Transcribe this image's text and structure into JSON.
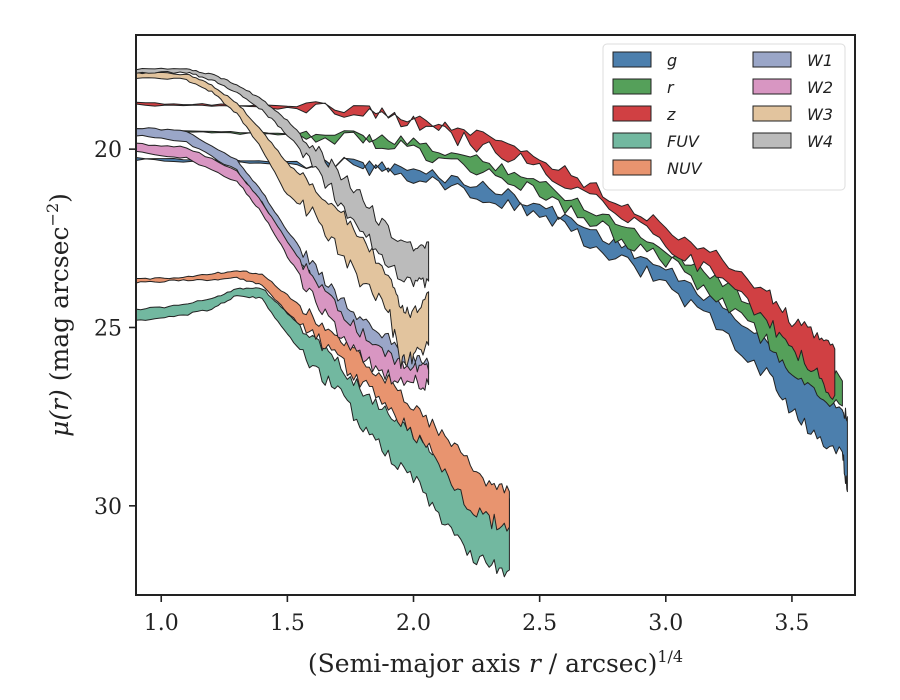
{
  "chart_data": {
    "type": "area",
    "xlabel": "(Semi-major axis r / arcsec)",
    "xlabel_italic_var": "r",
    "xlabel_power": "1/4",
    "ylabel": "μ(r) (mag arcsec",
    "ylabel_power": "−2",
    "ylabel_suffix": ")",
    "xlim": [
      0.9,
      3.75
    ],
    "ylim": [
      32.5,
      16.8
    ],
    "y_inverted": true,
    "xticks": [
      1.0,
      1.5,
      2.0,
      2.5,
      3.0,
      3.5
    ],
    "xtick_labels": [
      "1.0",
      "1.5",
      "2.0",
      "2.5",
      "3.0",
      "3.5"
    ],
    "yticks": [
      20,
      25,
      30
    ],
    "ytick_labels": [
      "20",
      "25",
      "30"
    ],
    "legend_position": "top-right",
    "legend_columns": 2,
    "series": [
      {
        "name": "g",
        "color": "#4c7fad",
        "x": [
          0.9,
          1.2,
          1.5,
          1.8,
          2.0,
          2.2,
          2.4,
          2.6,
          2.8,
          3.0,
          3.2,
          3.4,
          3.5,
          3.6,
          3.7,
          3.72
        ],
        "bright": [
          20.25,
          20.3,
          20.35,
          20.4,
          20.6,
          20.9,
          21.3,
          21.9,
          22.6,
          23.4,
          24.3,
          25.4,
          26.0,
          26.5,
          27.3,
          27.5
        ],
        "faint": [
          20.3,
          20.35,
          20.4,
          20.5,
          20.75,
          21.1,
          21.6,
          22.2,
          23.0,
          23.8,
          24.9,
          26.3,
          27.4,
          28.0,
          28.5,
          29.6
        ]
      },
      {
        "name": "r",
        "color": "#55a05a",
        "x": [
          0.9,
          1.2,
          1.5,
          1.8,
          2.0,
          2.2,
          2.4,
          2.6,
          2.8,
          3.0,
          3.2,
          3.4,
          3.5,
          3.6,
          3.7
        ],
        "bright": [
          19.45,
          19.5,
          19.55,
          19.65,
          19.85,
          20.2,
          20.6,
          21.3,
          22.0,
          22.8,
          23.6,
          24.6,
          25.2,
          26.0,
          26.5
        ],
        "faint": [
          19.5,
          19.55,
          19.6,
          19.75,
          20.0,
          20.45,
          20.9,
          21.6,
          22.4,
          23.1,
          24.1,
          25.4,
          26.2,
          27.0,
          27.2
        ]
      },
      {
        "name": "z",
        "color": "#d04043",
        "x": [
          0.9,
          1.2,
          1.5,
          1.8,
          2.0,
          2.2,
          2.4,
          2.6,
          2.8,
          3.0,
          3.2,
          3.4,
          3.5,
          3.6,
          3.67
        ],
        "bright": [
          18.7,
          18.75,
          18.8,
          18.9,
          19.15,
          19.5,
          19.95,
          20.6,
          21.4,
          22.2,
          23.0,
          24.0,
          24.8,
          25.2,
          25.6
        ],
        "faint": [
          18.75,
          18.8,
          18.85,
          19.0,
          19.3,
          19.75,
          20.25,
          20.9,
          21.7,
          22.6,
          23.6,
          24.8,
          25.6,
          26.3,
          26.9
        ]
      },
      {
        "name": "FUV",
        "color": "#72b8a0",
        "x": [
          0.9,
          1.05,
          1.2,
          1.3,
          1.4,
          1.5,
          1.6,
          1.7,
          1.8,
          1.9,
          2.0,
          2.1,
          2.2,
          2.3,
          2.38
        ],
        "bright": [
          24.5,
          24.4,
          24.2,
          23.9,
          23.9,
          24.6,
          25.3,
          26.0,
          26.8,
          27.4,
          28.0,
          28.6,
          29.3,
          29.6,
          29.8
        ],
        "faint": [
          24.8,
          24.7,
          24.5,
          24.1,
          24.2,
          25.2,
          26.1,
          26.8,
          27.8,
          28.6,
          29.2,
          30.2,
          31.3,
          31.7,
          31.8
        ]
      },
      {
        "name": "NUV",
        "color": "#e8946f",
        "x": [
          0.9,
          1.05,
          1.2,
          1.3,
          1.4,
          1.5,
          1.6,
          1.7,
          1.8,
          1.9,
          2.0,
          2.1,
          2.2,
          2.3,
          2.38
        ],
        "bright": [
          23.65,
          23.6,
          23.5,
          23.4,
          23.5,
          24.1,
          24.7,
          25.3,
          25.9,
          26.5,
          27.2,
          27.9,
          28.6,
          29.4,
          29.6
        ],
        "faint": [
          23.75,
          23.7,
          23.65,
          23.6,
          23.8,
          24.6,
          25.2,
          25.9,
          26.6,
          27.2,
          28.0,
          28.7,
          29.8,
          30.4,
          30.6
        ]
      },
      {
        "name": "W1",
        "color": "#9aa6c8",
        "x": [
          0.9,
          1.1,
          1.3,
          1.4,
          1.5,
          1.6,
          1.7,
          1.8,
          1.9,
          2.0,
          2.06
        ],
        "bright": [
          19.4,
          19.5,
          20.3,
          21.2,
          22.3,
          23.2,
          24.1,
          24.8,
          25.3,
          25.8,
          26.0
        ],
        "faint": [
          19.6,
          19.8,
          20.6,
          21.5,
          22.7,
          23.7,
          24.8,
          25.6,
          26.1,
          26.2,
          26.3
        ]
      },
      {
        "name": "W2",
        "color": "#d896c2",
        "x": [
          0.9,
          1.1,
          1.3,
          1.4,
          1.5,
          1.6,
          1.7,
          1.8,
          1.9,
          2.0,
          2.06
        ],
        "bright": [
          19.85,
          19.95,
          20.6,
          21.5,
          22.6,
          23.6,
          24.5,
          25.2,
          25.8,
          26.1,
          26.2
        ],
        "faint": [
          20.05,
          20.25,
          20.9,
          21.8,
          23.0,
          24.1,
          25.1,
          25.8,
          26.4,
          26.5,
          26.6
        ]
      },
      {
        "name": "W3",
        "color": "#e2c49e",
        "x": [
          0.9,
          1.1,
          1.2,
          1.3,
          1.4,
          1.5,
          1.6,
          1.7,
          1.8,
          1.9,
          1.95,
          2.0,
          2.06
        ],
        "bright": [
          17.85,
          17.9,
          18.2,
          18.7,
          19.5,
          20.4,
          21.0,
          21.7,
          22.5,
          23.6,
          24.5,
          24.6,
          24.0
        ],
        "faint": [
          18.0,
          18.05,
          18.4,
          19.0,
          20.0,
          21.3,
          21.8,
          22.8,
          23.8,
          24.5,
          26.0,
          25.8,
          25.5
        ]
      },
      {
        "name": "W4",
        "color": "#bbbbbb",
        "x": [
          0.9,
          1.1,
          1.2,
          1.3,
          1.4,
          1.5,
          1.6,
          1.7,
          1.8,
          1.9,
          2.0,
          2.06
        ],
        "bright": [
          17.75,
          17.75,
          17.9,
          18.2,
          18.6,
          19.2,
          19.9,
          20.6,
          21.4,
          22.3,
          22.8,
          22.6
        ],
        "faint": [
          17.85,
          17.85,
          18.05,
          18.4,
          18.9,
          19.6,
          20.4,
          21.4,
          22.3,
          23.3,
          23.8,
          23.7
        ]
      }
    ]
  },
  "colors": {
    "axes": "#222222",
    "edge": "#222222",
    "background": "#ffffff"
  }
}
